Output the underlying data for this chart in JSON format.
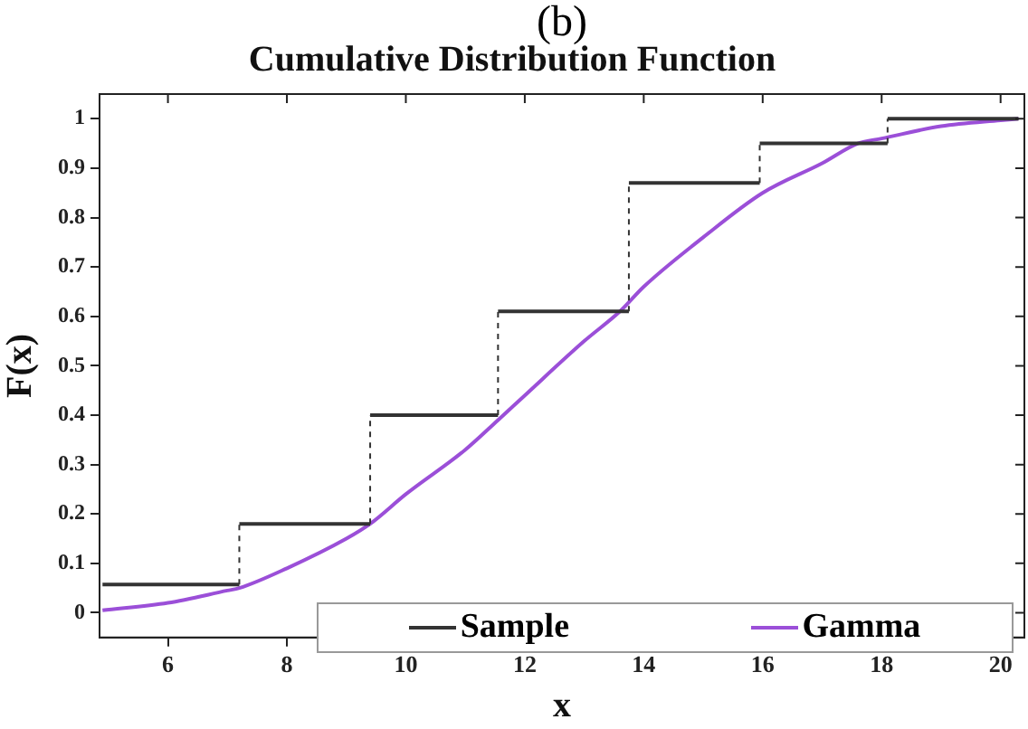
{
  "chart_data": {
    "type": "line",
    "title": "Cumulative Distribution Function",
    "xlabel": "x",
    "ylabel": "F(x)",
    "annotations": [
      "(b)"
    ],
    "xlim": [
      4.85,
      20.4
    ],
    "xticks": [
      6,
      8,
      10,
      12,
      14,
      16,
      18,
      20
    ],
    "ylim": [
      -0.05,
      1.05
    ],
    "yticks": [
      0,
      0.1,
      0.2,
      0.3,
      0.4,
      0.5,
      0.6,
      0.7,
      0.8,
      0.9,
      1
    ],
    "grid": false,
    "legend": "bottom",
    "marker": "none",
    "series": [
      {
        "name": "Sample",
        "type": "step",
        "color": "#333333",
        "x": [
          4.9,
          7.2,
          9.4,
          11.55,
          13.75,
          15.95,
          18.1,
          20.3
        ],
        "values": [
          0.057,
          0.18,
          0.4,
          0.61,
          0.87,
          0.95,
          1.0,
          1.0
        ]
      },
      {
        "name": "Gamma",
        "type": "line",
        "color": "#9b4fd8",
        "x": [
          4.9,
          6,
          7,
          7.2,
          8,
          9,
          9.4,
          10,
          11,
          11.55,
          12,
          13,
          13.6,
          14,
          15,
          16,
          17,
          17.6,
          18,
          19,
          20,
          20.3
        ],
        "values": [
          0.005,
          0.02,
          0.045,
          0.05,
          0.09,
          0.15,
          0.18,
          0.24,
          0.33,
          0.39,
          0.44,
          0.55,
          0.61,
          0.66,
          0.76,
          0.85,
          0.91,
          0.95,
          0.96,
          0.985,
          0.997,
          1.0
        ]
      }
    ]
  }
}
